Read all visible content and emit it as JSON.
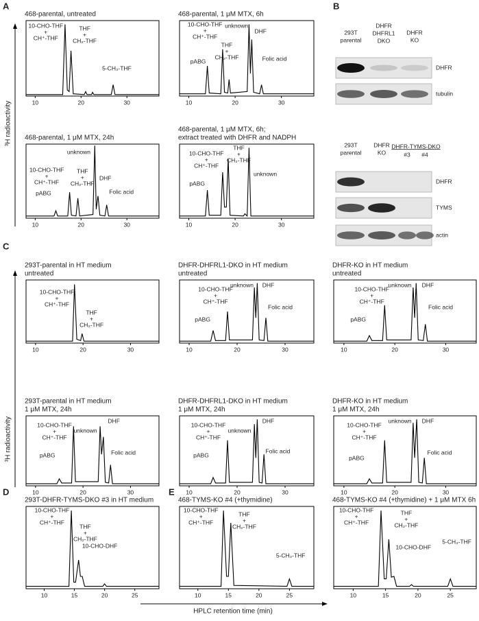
{
  "figure": {
    "panel_labels": [
      "A",
      "B",
      "C",
      "D",
      "E"
    ],
    "y_axis_label": "³H radioactivity",
    "x_axis_label": "HPLC retention time (min)"
  },
  "chart_data": [
    {
      "type": "line",
      "title": [
        "468-parental, untreated"
      ],
      "color": "#000000",
      "xlim": [
        8,
        37
      ],
      "xticks": [
        10,
        20,
        30
      ],
      "ylim": [
        0,
        100
      ],
      "x": [
        8,
        16.0,
        16.5,
        17.0,
        17.4,
        17.8,
        18.3,
        20.7,
        21,
        21.3,
        22.3,
        22.5,
        22.8,
        26.6,
        27,
        27.4,
        37
      ],
      "values": [
        2,
        2,
        95,
        8,
        6,
        60,
        3,
        2,
        6,
        2,
        2,
        5,
        2,
        2,
        15,
        2,
        2
      ],
      "annotations": [
        {
          "lines": [
            "10-CHO-THF",
            "+",
            "CH⁺-THF"
          ],
          "color": "#222222"
        },
        {
          "lines": [
            "THF",
            "+",
            "CH₂-THF"
          ],
          "color": "#222222"
        },
        {
          "lines": [
            "5-CH₃-THF"
          ],
          "color": "#222222"
        }
      ]
    },
    {
      "type": "line",
      "title": [
        "468-parental, 1 μM MTX, 6h"
      ],
      "color": "#000000",
      "xlim": [
        8,
        37
      ],
      "xticks": [
        10,
        20,
        30
      ],
      "ylim": [
        0,
        100
      ],
      "x": [
        8,
        13.6,
        14,
        14.4,
        16.9,
        17.3,
        17.7,
        18.4,
        18.7,
        19,
        22.6,
        23,
        23.3,
        23.6,
        24,
        25.3,
        25.7,
        26.1,
        37
      ],
      "values": [
        3,
        3,
        40,
        4,
        3,
        62,
        5,
        4,
        22,
        4,
        6,
        95,
        30,
        75,
        5,
        3,
        15,
        3,
        3
      ],
      "annotations": [
        {
          "lines": [
            "pABG"
          ],
          "color": "#222222"
        },
        {
          "lines": [
            "10-CHO-THF",
            "+",
            "CH⁺-THF"
          ],
          "color": "#222222"
        },
        {
          "lines": [
            "unknown"
          ],
          "color": "#d7191c"
        },
        {
          "lines": [
            "THF",
            "+",
            "CH₂-THF"
          ],
          "color": "#222222"
        },
        {
          "lines": [
            "DHF"
          ],
          "color": "#2b3a9b"
        },
        {
          "lines": [
            "Folic acid"
          ],
          "color": "#2b3a9b"
        }
      ]
    },
    {
      "type": "line",
      "title": [
        "468-parental, 1 μM MTX, 24h"
      ],
      "color": "#000000",
      "xlim": [
        8,
        37
      ],
      "xticks": [
        10,
        20,
        30
      ],
      "ylim": [
        0,
        100
      ],
      "x": [
        8,
        14.1,
        14.5,
        14.9,
        17.1,
        17.5,
        17.9,
        18.9,
        19.3,
        19.7,
        22.6,
        23,
        23.3,
        23.7,
        24.1,
        25.2,
        25.6,
        26,
        37
      ],
      "values": [
        3,
        3,
        10,
        3,
        3,
        35,
        4,
        3,
        27,
        3,
        5,
        98,
        12,
        30,
        4,
        3,
        18,
        3,
        3
      ],
      "annotations": [
        {
          "lines": [
            "pABG"
          ],
          "color": "#222222"
        },
        {
          "lines": [
            "10-CHO-THF",
            "+",
            "CH⁺-THF"
          ],
          "color": "#222222"
        },
        {
          "lines": [
            "unknown"
          ],
          "color": "#d7191c"
        },
        {
          "lines": [
            "THF",
            "+",
            "CH₂-THF"
          ],
          "color": "#222222"
        },
        {
          "lines": [
            "DHF"
          ],
          "color": "#2b3a9b"
        },
        {
          "lines": [
            "Folic acid"
          ],
          "color": "#2b3a9b"
        }
      ]
    },
    {
      "type": "line",
      "title": [
        "468-parental, 1 μM MTX, 6h;",
        "extract treated with DHFR and NADPH"
      ],
      "color": "#000000",
      "xlim": [
        8,
        37
      ],
      "xticks": [
        10,
        20,
        30
      ],
      "ylim": [
        0,
        100
      ],
      "x": [
        8,
        13.6,
        14,
        14.4,
        16.9,
        17.3,
        17.7,
        18.1,
        18.5,
        18.9,
        21.8,
        22.1,
        22.6,
        23,
        23.4,
        37
      ],
      "values": [
        3,
        3,
        38,
        4,
        4,
        62,
        15,
        15,
        80,
        4,
        3,
        6,
        3,
        95,
        3,
        3
      ],
      "annotations": [
        {
          "lines": [
            "pABG"
          ],
          "color": "#222222"
        },
        {
          "lines": [
            "10-CHO-THF",
            "+",
            "CH⁺-THF"
          ],
          "color": "#222222"
        },
        {
          "lines": [
            "THF",
            "+",
            "CH₂-THF"
          ],
          "color": "#222222"
        },
        {
          "lines": [
            "unknown"
          ],
          "color": "#d7191c"
        }
      ]
    },
    {
      "type": "line",
      "title": [
        "293T-parental in HT medium",
        "untreated"
      ],
      "color": "#000000",
      "xlim": [
        8,
        36
      ],
      "xticks": [
        10,
        20,
        30
      ],
      "ylim": [
        0,
        100
      ],
      "x": [
        8,
        17.8,
        18.2,
        18.7,
        19.5,
        19.8,
        20.2,
        36
      ],
      "values": [
        3,
        3,
        93,
        6,
        4,
        15,
        3,
        3
      ],
      "annotations": [
        {
          "lines": [
            "10-CHO-THF",
            "+",
            "CH⁺-THF"
          ],
          "color": "#222222"
        },
        {
          "lines": [
            "THF",
            "+",
            "CH₂-THF"
          ],
          "color": "#222222"
        }
      ]
    },
    {
      "type": "line",
      "title": [
        "DHFR-DHFRL1-DKO in HT medium",
        "untreated"
      ],
      "color": "#000000",
      "xlim": [
        8,
        36
      ],
      "xticks": [
        10,
        20,
        30
      ],
      "ylim": [
        0,
        100
      ],
      "x": [
        8,
        14.5,
        15,
        15.5,
        17.6,
        18,
        18.4,
        23.2,
        23.6,
        23.9,
        24.2,
        24.6,
        25.6,
        26,
        26.4,
        36
      ],
      "values": [
        3,
        3,
        20,
        4,
        4,
        50,
        5,
        5,
        88,
        40,
        95,
        5,
        4,
        40,
        3,
        3
      ],
      "annotations": [
        {
          "lines": [
            "pABG"
          ],
          "color": "#222222"
        },
        {
          "lines": [
            "10-CHO-THF",
            "+",
            "CH⁺-THF"
          ],
          "color": "#222222"
        },
        {
          "lines": [
            "unknown"
          ],
          "color": "#d7191c"
        },
        {
          "lines": [
            "DHF"
          ],
          "color": "#2b3a9b"
        },
        {
          "lines": [
            "Folic acid"
          ],
          "color": "#2b3a9b"
        }
      ]
    },
    {
      "type": "line",
      "title": [
        "DHFR-KO in HT medium",
        "untreated"
      ],
      "color": "#000000",
      "xlim": [
        8,
        36
      ],
      "xticks": [
        10,
        20,
        30
      ],
      "ylim": [
        0,
        100
      ],
      "x": [
        8,
        14.5,
        15,
        15.5,
        17.6,
        18,
        18.4,
        23.2,
        23.6,
        23.9,
        24.2,
        24.6,
        25.6,
        26,
        26.4,
        36
      ],
      "values": [
        3,
        3,
        12,
        4,
        4,
        60,
        5,
        5,
        88,
        40,
        95,
        5,
        4,
        30,
        3,
        3
      ],
      "annotations": [
        {
          "lines": [
            "pABG"
          ],
          "color": "#222222"
        },
        {
          "lines": [
            "10-CHO-THF",
            "+",
            "CH⁺-THF"
          ],
          "color": "#222222"
        },
        {
          "lines": [
            "unknown"
          ],
          "color": "#d7191c"
        },
        {
          "lines": [
            "DHF"
          ],
          "color": "#2b3a9b"
        },
        {
          "lines": [
            "Folic acid"
          ],
          "color": "#2b3a9b"
        }
      ]
    },
    {
      "type": "line",
      "title": [
        "293T-parental in HT medium",
        "1 μM MTX, 24h"
      ],
      "color": "#000000",
      "xlim": [
        8,
        36
      ],
      "xticks": [
        10,
        20,
        30
      ],
      "ylim": [
        0,
        100
      ],
      "x": [
        8,
        14.5,
        15,
        15.5,
        17.6,
        18,
        18.4,
        23.2,
        23.6,
        23.9,
        24.3,
        24.7,
        25.4,
        25.8,
        26.2,
        36
      ],
      "values": [
        3,
        3,
        10,
        4,
        4,
        85,
        6,
        6,
        85,
        45,
        70,
        5,
        4,
        30,
        3,
        3
      ],
      "annotations": [
        {
          "lines": [
            "pABG"
          ],
          "color": "#222222"
        },
        {
          "lines": [
            "10-CHO-THF",
            "+",
            "CH⁺-THF"
          ],
          "color": "#222222"
        },
        {
          "lines": [
            "unknown"
          ],
          "color": "#d7191c"
        },
        {
          "lines": [
            "DHF"
          ],
          "color": "#2b3a9b"
        },
        {
          "lines": [
            "Folic acid"
          ],
          "color": "#2b3a9b"
        }
      ]
    },
    {
      "type": "line",
      "title": [
        "DHFR-DHFRL1-DKO in HT medium",
        "1 μM MTX, 24h"
      ],
      "color": "#000000",
      "xlim": [
        8,
        36
      ],
      "xticks": [
        10,
        20,
        30
      ],
      "ylim": [
        0,
        100
      ],
      "x": [
        8,
        14.5,
        15,
        15.5,
        17.6,
        18,
        18.4,
        23.2,
        23.6,
        23.9,
        24.2,
        24.6,
        25.2,
        25.6,
        26,
        36
      ],
      "values": [
        3,
        3,
        12,
        4,
        4,
        65,
        5,
        5,
        88,
        40,
        95,
        5,
        4,
        45,
        3,
        3
      ],
      "annotations": [
        {
          "lines": [
            "pABG"
          ],
          "color": "#222222"
        },
        {
          "lines": [
            "10-CHO-THF",
            "+",
            "CH⁺-THF"
          ],
          "color": "#222222"
        },
        {
          "lines": [
            "unknown"
          ],
          "color": "#d7191c"
        },
        {
          "lines": [
            "DHF"
          ],
          "color": "#2b3a9b"
        },
        {
          "lines": [
            "Folic acid"
          ],
          "color": "#2b3a9b"
        }
      ]
    },
    {
      "type": "line",
      "title": [
        "DHFR-KO in HT medium",
        "1 μM MTX, 24h"
      ],
      "color": "#000000",
      "xlim": [
        8,
        36
      ],
      "xticks": [
        10,
        20,
        30
      ],
      "ylim": [
        0,
        100
      ],
      "x": [
        8,
        14.5,
        15,
        15.5,
        17.6,
        18,
        18.4,
        23.2,
        23.6,
        23.9,
        24.3,
        24.7,
        25.4,
        25.8,
        26.2,
        36
      ],
      "values": [
        3,
        3,
        10,
        4,
        4,
        65,
        5,
        5,
        90,
        40,
        95,
        5,
        4,
        40,
        3,
        3
      ],
      "annotations": [
        {
          "lines": [
            "pABG"
          ],
          "color": "#222222"
        },
        {
          "lines": [
            "10-CHO-THF",
            "+",
            "CH⁺-THF"
          ],
          "color": "#222222"
        },
        {
          "lines": [
            "unknown"
          ],
          "color": "#d7191c"
        },
        {
          "lines": [
            "DHF"
          ],
          "color": "#2b3a9b"
        },
        {
          "lines": [
            "Folic acid"
          ],
          "color": "#2b3a9b"
        }
      ]
    },
    {
      "type": "line",
      "title": [
        "293T-DHFR-TYMS-DKO #3 in HT medium"
      ],
      "color": "#000000",
      "xlim": [
        7,
        29
      ],
      "xticks": [
        10,
        15,
        20,
        25
      ],
      "ylim": [
        0,
        100
      ],
      "x": [
        7,
        14.1,
        14.5,
        14.9,
        15.2,
        15.7,
        16,
        16.3,
        16.7,
        19.7,
        20,
        20.3,
        29
      ],
      "values": [
        3,
        3,
        95,
        8,
        8,
        35,
        15,
        15,
        3,
        3,
        6,
        3,
        3
      ],
      "annotations": [
        {
          "lines": [
            "10-CHO-THF",
            "+",
            "CH⁺-THF"
          ],
          "color": "#222222"
        },
        {
          "lines": [
            "THF",
            "+",
            "CH₂-THF"
          ],
          "color": "#222222"
        },
        {
          "lines": [
            "10-CHO-DHF"
          ],
          "color": "#2b3a9b"
        }
      ]
    },
    {
      "type": "line",
      "title": [
        "468-TYMS-KO #4 (+thymidine)"
      ],
      "color": "#000000",
      "xlim": [
        7,
        29
      ],
      "xticks": [
        10,
        15,
        20,
        25
      ],
      "ylim": [
        0,
        100
      ],
      "x": [
        7,
        13.8,
        14.2,
        14.7,
        15,
        15.4,
        15.9,
        24.6,
        25,
        25.4,
        29
      ],
      "values": [
        3,
        3,
        95,
        15,
        15,
        80,
        4,
        3,
        12,
        3,
        3
      ],
      "annotations": [
        {
          "lines": [
            "10-CHO-THF",
            "+",
            "CH⁺-THF"
          ],
          "color": "#222222"
        },
        {
          "lines": [
            "THF",
            "+",
            "CH₂-THF"
          ],
          "color": "#222222"
        },
        {
          "lines": [
            "5-CH₃-THF"
          ],
          "color": "#222222"
        }
      ]
    },
    {
      "type": "line",
      "title": [
        "468-TYMS-KO #4 (+thymidine) + 1 μM MTX 6h"
      ],
      "color": "#000000",
      "xlim": [
        7,
        29
      ],
      "xticks": [
        10,
        15,
        20,
        25
      ],
      "ylim": [
        0,
        100
      ],
      "x": [
        7,
        13.9,
        14.3,
        14.8,
        15.1,
        15.5,
        15.9,
        16.3,
        16.7,
        18.7,
        19,
        19.3,
        24.6,
        25,
        25.4,
        29
      ],
      "values": [
        3,
        3,
        95,
        12,
        12,
        60,
        14,
        15,
        3,
        3,
        5,
        3,
        3,
        12,
        3,
        3
      ],
      "annotations": [
        {
          "lines": [
            "10-CHO-THF",
            "+",
            "CH⁺-THF"
          ],
          "color": "#222222"
        },
        {
          "lines": [
            "THF",
            "+",
            "CH₂-THF"
          ],
          "color": "#222222"
        },
        {
          "lines": [
            "10-CHO-DHF"
          ],
          "color": "#2b3a9b"
        },
        {
          "lines": [
            "5-CH₃-THF"
          ],
          "color": "#222222"
        }
      ]
    }
  ],
  "blots": [
    {
      "columns": [
        [
          "293T",
          "parental"
        ],
        [
          "DHFR",
          "DHFRL1",
          "DKO"
        ],
        [
          "DHFR",
          "KO"
        ]
      ],
      "rows": [
        "DHFR",
        "tubulin"
      ]
    },
    {
      "columns": [
        [
          "293T",
          "parental"
        ],
        [
          "DHFR",
          "KO"
        ],
        [
          "#3"
        ],
        [
          "#4"
        ]
      ],
      "group_label": "DHFR-TYMS-DKO",
      "rows": [
        "DHFR",
        "TYMS",
        "actin"
      ]
    }
  ]
}
